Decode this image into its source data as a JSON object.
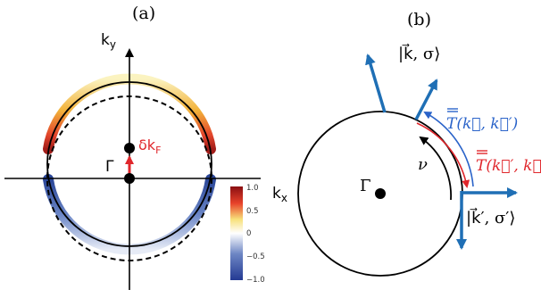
{
  "panel_a": {
    "label": "(a)",
    "axis_x_label": "k",
    "axis_x_sub": "x",
    "axis_y_label": "k",
    "axis_y_sub": "y",
    "gamma_label": "Γ",
    "shift_label": "δk",
    "shift_sub": "F",
    "colorbar": {
      "ticks": [
        "1.0",
        "0.5",
        "0",
        "−0.5",
        "−1.0"
      ],
      "colors": {
        "top": "#8a0f12",
        "upper": "#e8422a",
        "mid_upper": "#f7e07a",
        "mid": "#ffffff",
        "lower": "#6d86c4",
        "bottom": "#243a93"
      }
    }
  },
  "panel_b": {
    "label": "(b)",
    "gamma_label": "Γ",
    "nu_label": "ν",
    "ket_top": "|k⃗, σ⟩",
    "ket_right": "|k⃗′, σ′⟩",
    "t_blue_label": "T(k⃗, k⃗′)",
    "t_red_label": "T(k⃗′, k⃗)",
    "colors": {
      "arrow": "#1f6fb5",
      "t_blue": "#2a63c9",
      "t_red": "#e0262b"
    }
  }
}
